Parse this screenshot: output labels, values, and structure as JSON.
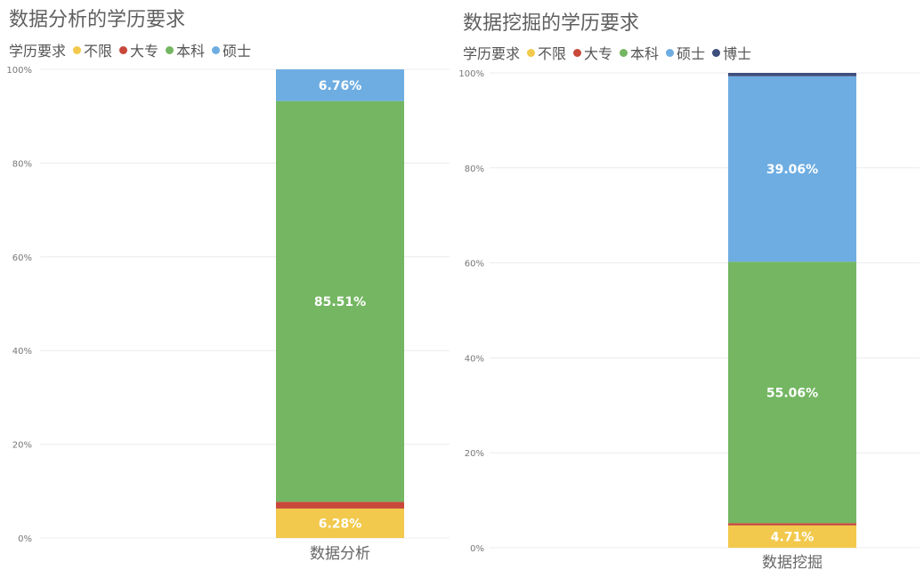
{
  "chart_data": [
    {
      "type": "bar",
      "stacked": "percent",
      "title": "数据分析的学历要求",
      "legend_title": "学历要求",
      "legend_position": "top-left",
      "categories": [
        "数据分析"
      ],
      "yticks": [
        "0%",
        "20%",
        "40%",
        "60%",
        "80%",
        "100%"
      ],
      "ylim": [
        0,
        100
      ],
      "grid": true,
      "series": [
        {
          "name": "不限",
          "color": "#F2C94C",
          "values": [
            6.28
          ],
          "label": "6.28%"
        },
        {
          "name": "大专",
          "color": "#C8483A",
          "values": [
            1.45
          ],
          "label": ""
        },
        {
          "name": "本科",
          "color": "#74B662",
          "values": [
            85.51
          ],
          "label": "85.51%"
        },
        {
          "name": "硕士",
          "color": "#6EADE2",
          "values": [
            6.76
          ],
          "label": "6.76%"
        }
      ]
    },
    {
      "type": "bar",
      "stacked": "percent",
      "title": "数据挖掘的学历要求",
      "legend_title": "学历要求",
      "legend_position": "top-left",
      "categories": [
        "数据挖掘"
      ],
      "yticks": [
        "0%",
        "20%",
        "40%",
        "60%",
        "80%",
        "100%"
      ],
      "ylim": [
        0,
        100
      ],
      "grid": true,
      "series": [
        {
          "name": "不限",
          "color": "#F2C94C",
          "values": [
            4.71
          ],
          "label": "4.71%"
        },
        {
          "name": "大专",
          "color": "#C8483A",
          "values": [
            0.47
          ],
          "label": ""
        },
        {
          "name": "本科",
          "color": "#74B662",
          "values": [
            55.06
          ],
          "label": "55.06%"
        },
        {
          "name": "硕士",
          "color": "#6EADE2",
          "values": [
            39.06
          ],
          "label": "39.06%"
        },
        {
          "name": "博士",
          "color": "#3E4E7C",
          "values": [
            0.7
          ],
          "label": ""
        }
      ]
    }
  ]
}
